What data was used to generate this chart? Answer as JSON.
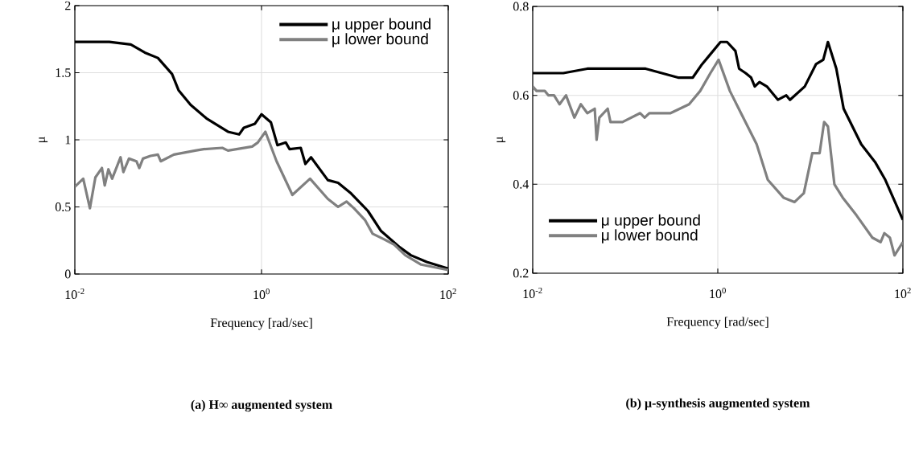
{
  "chart_data": [
    {
      "type": "line",
      "title": "(a) H∞ augmented system",
      "xlabel": "Frequency [rad/sec]",
      "ylabel": "μ",
      "log": "x",
      "xlim": [
        0.01,
        100
      ],
      "ylim": [
        0,
        2
      ],
      "xticks": [
        {
          "value": 0.01,
          "label": "10$^{-2}$"
        },
        {
          "value": 1,
          "label": "10$^{0}$"
        },
        {
          "value": 100,
          "label": "10$^{2}$"
        }
      ],
      "yticks": [
        0,
        0.5,
        1,
        1.5,
        2
      ],
      "grid": true,
      "legend": "top right",
      "series": [
        {
          "name": "μ upper bound",
          "color": "#000000",
          "x": [
            0.01,
            0.0234,
            0.0398,
            0.0562,
            0.0776,
            0.11,
            0.129,
            0.174,
            0.257,
            0.437,
            0.575,
            0.646,
            0.851,
            1,
            1.26,
            1.48,
            1.82,
            2.0,
            2.63,
            2.95,
            3.39,
            5.13,
            6.61,
            9.12,
            13.8,
            19.1,
            30.2,
            39.8,
            58.9,
            100
          ],
          "values": [
            1.73,
            1.73,
            1.71,
            1.65,
            1.61,
            1.49,
            1.37,
            1.26,
            1.16,
            1.06,
            1.04,
            1.09,
            1.12,
            1.19,
            1.13,
            0.96,
            0.98,
            0.93,
            0.94,
            0.82,
            0.87,
            0.7,
            0.68,
            0.6,
            0.47,
            0.32,
            0.2,
            0.14,
            0.09,
            0.04
          ]
        },
        {
          "name": "μ lower bound",
          "color": "#808080",
          "x": [
            0.01,
            0.0123,
            0.0145,
            0.0166,
            0.0195,
            0.0209,
            0.0229,
            0.0251,
            0.0309,
            0.0331,
            0.038,
            0.0457,
            0.049,
            0.0537,
            0.0646,
            0.0776,
            0.0832,
            0.115,
            0.195,
            0.24,
            0.38,
            0.437,
            0.794,
            0.912,
            1.1,
            1.45,
            2.14,
            3.31,
            5.13,
            6.61,
            8.13,
            9.77,
            12.9,
            15.5,
            20.4,
            26.3,
            34.7,
            51.3,
            100
          ],
          "values": [
            0.65,
            0.71,
            0.49,
            0.72,
            0.79,
            0.66,
            0.78,
            0.71,
            0.87,
            0.76,
            0.86,
            0.84,
            0.79,
            0.86,
            0.88,
            0.89,
            0.84,
            0.89,
            0.92,
            0.93,
            0.94,
            0.92,
            0.95,
            0.98,
            1.06,
            0.84,
            0.59,
            0.71,
            0.56,
            0.5,
            0.54,
            0.49,
            0.4,
            0.3,
            0.26,
            0.22,
            0.14,
            0.07,
            0.03
          ]
        }
      ]
    },
    {
      "type": "line",
      "title": "(b) μ-synthesis augmented system",
      "xlabel": "Frequency [rad/sec]",
      "ylabel": "μ",
      "log": "x",
      "xlim": [
        0.01,
        100
      ],
      "ylim": [
        0.2,
        0.8
      ],
      "xticks": [
        {
          "value": 0.01,
          "label": "10$^{-2}$"
        },
        {
          "value": 1,
          "label": "10$^{0}$"
        },
        {
          "value": 100,
          "label": "10$^{2}$"
        }
      ],
      "yticks": [
        0.2,
        0.4,
        0.6,
        0.8
      ],
      "grid": true,
      "legend": "bottom left",
      "series": [
        {
          "name": "μ upper bound",
          "color": "#000000",
          "x": [
            0.01,
            0.0214,
            0.0389,
            0.0447,
            0.0708,
            0.166,
            0.372,
            0.447,
            0.537,
            0.676,
            0.813,
            1.07,
            1.26,
            1.55,
            1.7,
            2.0,
            2.29,
            2.51,
            2.82,
            3.39,
            4.47,
            5.5,
            6.03,
            8.71,
            11.5,
            13.8,
            15.5,
            19.1,
            22.9,
            35.5,
            50.1,
            64.6,
            100
          ],
          "values": [
            0.65,
            0.65,
            0.66,
            0.66,
            0.66,
            0.66,
            0.64,
            0.64,
            0.64,
            0.67,
            0.69,
            0.72,
            0.72,
            0.7,
            0.66,
            0.65,
            0.64,
            0.62,
            0.63,
            0.62,
            0.59,
            0.6,
            0.59,
            0.62,
            0.67,
            0.68,
            0.72,
            0.66,
            0.57,
            0.49,
            0.45,
            0.41,
            0.32
          ]
        },
        {
          "name": "μ lower bound",
          "color": "#808080",
          "x": [
            0.01,
            0.011,
            0.0135,
            0.0148,
            0.017,
            0.0195,
            0.0229,
            0.0282,
            0.0331,
            0.0389,
            0.0468,
            0.049,
            0.0525,
            0.0646,
            0.0692,
            0.0933,
            0.145,
            0.162,
            0.182,
            0.309,
            0.49,
            0.646,
            0.832,
            1.02,
            1.35,
            1.78,
            2.63,
            3.47,
            5.13,
            6.76,
            8.51,
            10.5,
            12.6,
            14.1,
            15.5,
            18.2,
            22.4,
            31.6,
            46.8,
            57.5,
            63.1,
            72.4,
            81.3,
            100
          ],
          "values": [
            0.62,
            0.61,
            0.61,
            0.6,
            0.6,
            0.58,
            0.6,
            0.55,
            0.58,
            0.56,
            0.57,
            0.5,
            0.55,
            0.57,
            0.54,
            0.54,
            0.56,
            0.55,
            0.56,
            0.56,
            0.58,
            0.61,
            0.65,
            0.68,
            0.61,
            0.56,
            0.49,
            0.41,
            0.37,
            0.36,
            0.38,
            0.47,
            0.47,
            0.54,
            0.53,
            0.4,
            0.37,
            0.33,
            0.28,
            0.27,
            0.29,
            0.28,
            0.24,
            0.27
          ]
        }
      ]
    }
  ]
}
